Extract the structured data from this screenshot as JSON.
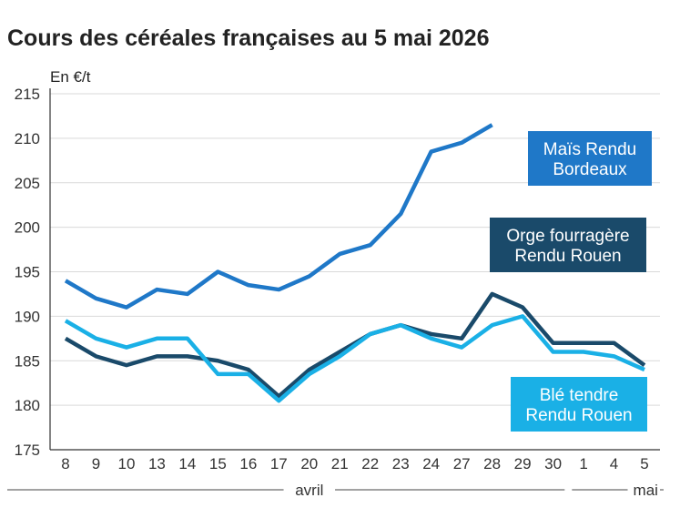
{
  "title": "Cours des céréales françaises au 5 mai 2026",
  "chart_data": {
    "type": "line",
    "title": "Cours des céréales françaises au 5 mai 2026",
    "ylabel": "En €/t",
    "xlabel": "",
    "ylim": [
      175,
      215
    ],
    "yticks": [
      175,
      180,
      185,
      190,
      195,
      200,
      205,
      210,
      215
    ],
    "grid": true,
    "categories": [
      "8",
      "9",
      "10",
      "13",
      "14",
      "15",
      "16",
      "17",
      "20",
      "21",
      "22",
      "23",
      "24",
      "27",
      "28",
      "29",
      "30",
      "1",
      "4",
      "5"
    ],
    "month_labels": [
      {
        "label": "avril",
        "from": 0,
        "to": 16
      },
      {
        "label": "mai",
        "from": 17,
        "to": 19
      }
    ],
    "series": [
      {
        "name": "Maïs Rendu Bordeaux",
        "label_lines": [
          "Maïs Rendu",
          "Bordeaux"
        ],
        "color": "#1f78c8",
        "values": [
          194,
          192,
          191,
          193,
          192.5,
          195,
          193.5,
          193,
          194.5,
          197,
          198,
          201.5,
          208.5,
          209.5,
          211.5,
          null,
          null,
          null,
          null,
          null
        ]
      },
      {
        "name": "Orge fourragère Rendu Rouen",
        "label_lines": [
          "Orge fourragère",
          "Rendu Rouen"
        ],
        "color": "#1a4a6a",
        "values": [
          187.5,
          185.5,
          184.5,
          185.5,
          185.5,
          185,
          184,
          181,
          184,
          186,
          188,
          189,
          188,
          187.5,
          192.5,
          191,
          187,
          187,
          187,
          184.5
        ]
      },
      {
        "name": "Blé tendre Rendu Rouen",
        "label_lines": [
          "Blé tendre",
          "Rendu Rouen"
        ],
        "color": "#1ab0e6",
        "values": [
          189.5,
          187.5,
          186.5,
          187.5,
          187.5,
          183.5,
          183.5,
          180.5,
          183.5,
          185.5,
          188,
          189,
          187.5,
          186.5,
          189,
          190,
          186,
          186,
          185.5,
          184
        ]
      }
    ]
  }
}
